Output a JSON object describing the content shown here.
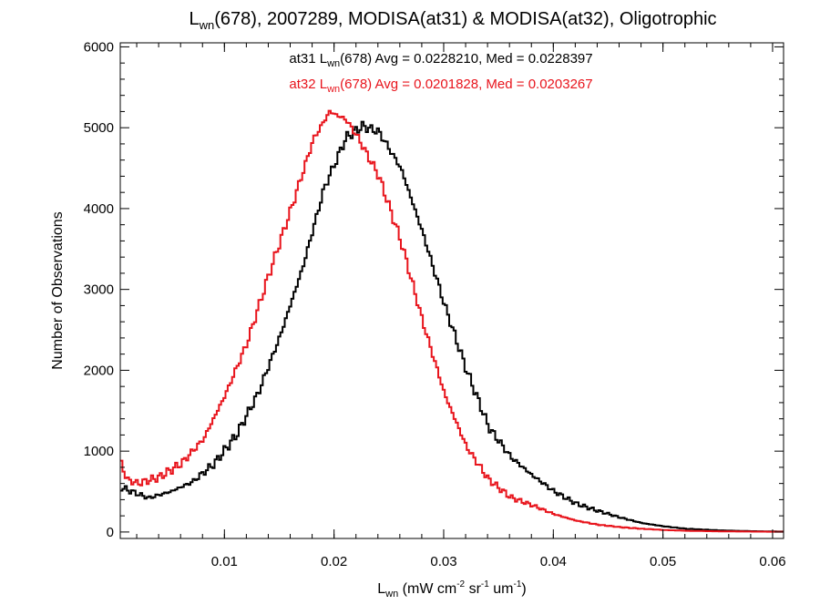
{
  "chart_data": {
    "type": "line",
    "title": {
      "prefix": "L",
      "sub": "wn",
      "rest": "(678), 2007289, MODISA(at31) & MODISA(at32), Oligotrophic"
    },
    "xlabel": {
      "main": "L",
      "sub": "wn",
      "units_open": " (mW cm",
      "sup1": "-2",
      "mid1": " sr",
      "sup2": "-1",
      "mid2": " um",
      "sup3": "-1",
      "close": ")"
    },
    "ylabel": "Number of Observations",
    "xlim": [
      0.0005,
      0.061
    ],
    "ylim": [
      -80,
      6050
    ],
    "x_ticks": [
      0.01,
      0.02,
      0.03,
      0.04,
      0.05,
      0.06
    ],
    "x_tick_labels": [
      "0.01",
      "0.02",
      "0.03",
      "0.04",
      "0.05",
      "0.06"
    ],
    "y_ticks": [
      0,
      1000,
      2000,
      3000,
      4000,
      5000,
      6000
    ],
    "y_tick_labels": [
      "0",
      "1000",
      "2000",
      "3000",
      "4000",
      "5000",
      "6000"
    ],
    "grid": false,
    "annotations": [
      {
        "color": "#000000",
        "pre": "at31 L",
        "sub": "wn",
        "post": "(678) Avg = 0.0228210, Med = 0.0228397"
      },
      {
        "color": "#e8141c",
        "pre": "at32 L",
        "sub": "wn",
        "post": "(678) Avg = 0.0201828, Med = 0.0203267"
      }
    ],
    "series": [
      {
        "color": "#000000",
        "style": "step",
        "x": [
          0.0005,
          0.003,
          0.005,
          0.007,
          0.009,
          0.011,
          0.013,
          0.015,
          0.017,
          0.019,
          0.021,
          0.0225,
          0.024,
          0.026,
          0.028,
          0.03,
          0.032,
          0.034,
          0.036,
          0.038,
          0.04,
          0.042,
          0.044,
          0.046,
          0.048,
          0.05,
          0.052,
          0.055,
          0.058,
          0.061
        ],
        "y": [
          550,
          420,
          500,
          620,
          850,
          1200,
          1720,
          2430,
          3250,
          4250,
          4880,
          5020,
          4950,
          4500,
          3700,
          2800,
          2000,
          1300,
          930,
          700,
          500,
          350,
          260,
          180,
          110,
          70,
          40,
          20,
          10,
          5
        ]
      },
      {
        "color": "#e8141c",
        "style": "step",
        "x": [
          0.0005,
          0.001,
          0.002,
          0.004,
          0.006,
          0.008,
          0.01,
          0.012,
          0.014,
          0.016,
          0.018,
          0.0195,
          0.021,
          0.022,
          0.024,
          0.026,
          0.028,
          0.03,
          0.032,
          0.034,
          0.036,
          0.038,
          0.04,
          0.042,
          0.044,
          0.046,
          0.048,
          0.05,
          0.052,
          0.055,
          0.058,
          0.061
        ],
        "y": [
          850,
          650,
          600,
          680,
          850,
          1150,
          1700,
          2350,
          3200,
          4000,
          4850,
          5200,
          5100,
          4900,
          4400,
          3600,
          2600,
          1700,
          1050,
          650,
          430,
          330,
          220,
          140,
          90,
          60,
          40,
          25,
          15,
          8,
          5,
          3
        ]
      }
    ]
  }
}
